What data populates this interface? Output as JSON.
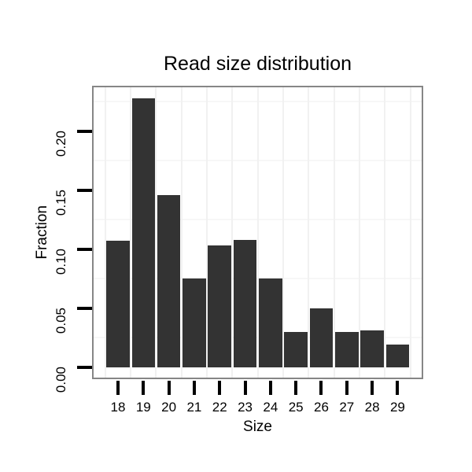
{
  "chart_data": {
    "type": "bar",
    "title": "Read size distribution",
    "xlabel": "Size",
    "ylabel": "Fraction",
    "categories": [
      "18",
      "19",
      "20",
      "21",
      "22",
      "23",
      "24",
      "25",
      "26",
      "27",
      "28",
      "29"
    ],
    "values": [
      0.107,
      0.228,
      0.146,
      0.075,
      0.103,
      0.108,
      0.075,
      0.03,
      0.05,
      0.03,
      0.031,
      0.019
    ],
    "y_tick_labels": [
      "0.00",
      "0.05",
      "0.10",
      "0.15",
      "0.20"
    ],
    "y_tick_values": [
      0,
      0.05,
      0.1,
      0.15,
      0.2
    ],
    "ylim": [
      -0.012,
      0.2395
    ],
    "minor_y_gridlines": [
      0.025,
      0.075,
      0.125,
      0.175,
      0.225
    ],
    "grid": "minor-horizontal-and-category-boundary-vertical",
    "legend": "none",
    "colors": {
      "bar_fill": "#333333",
      "panel_border": "#868686",
      "horizontal_gridline": "#f7f7f7",
      "vertical_gridline": "#f1f1f1",
      "axis_tick": "#000000",
      "text": "#000000",
      "background": "#ffffff"
    }
  }
}
